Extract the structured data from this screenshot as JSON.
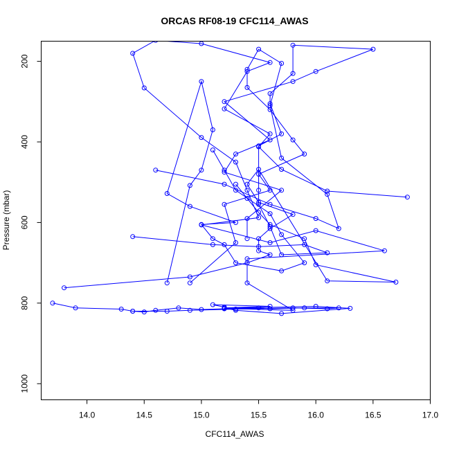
{
  "chart_data": {
    "type": "scatter",
    "title": "ORCAS RF08-19 CFC114_AWAS",
    "xlabel": "CFC114_AWAS",
    "ylabel": "Pressure (mbar)",
    "xlim": [
      13.6,
      17.0
    ],
    "ylim": [
      1040,
      150
    ],
    "y_inverted": true,
    "x_ticks": [
      14.0,
      14.5,
      15.0,
      15.5,
      16.0,
      16.5,
      17.0
    ],
    "x_tick_labels": [
      "14.0",
      "14.5",
      "15.0",
      "15.5",
      "16.0",
      "16.5",
      "17.0"
    ],
    "y_ticks": [
      200,
      400,
      600,
      800,
      1000
    ],
    "y_tick_labels": [
      "200",
      "400",
      "600",
      "800",
      "1000"
    ],
    "grid": false,
    "legend": "none",
    "marker": "open-circle",
    "connected": true,
    "color": "#0000ff",
    "series": [
      {
        "x": [
          16.8,
          16.1,
          15.7,
          15.5,
          15.6,
          15.2,
          15.4,
          15.6,
          15.0,
          14.6,
          14.4,
          14.5,
          15.0,
          15.3,
          15.4,
          15.5,
          15.0,
          15.6,
          16.0,
          16.6,
          15.4,
          15.4,
          15.8,
          15.2,
          16.0,
          16.3,
          15.7,
          15.3,
          15.2,
          15.6,
          15.1,
          15.2
        ],
        "y": [
          537,
          522,
          468,
          412,
          380,
          318,
          225,
          203,
          156,
          148,
          180,
          266,
          389,
          450,
          520,
          588,
          606,
          650,
          620,
          670,
          690,
          750,
          818,
          813,
          808,
          813,
          826,
          818,
          812,
          808,
          804,
          810
        ]
      },
      {
        "x": [
          14.4,
          15.1,
          15.5,
          15.9,
          16.1,
          15.7,
          15.6,
          15.5,
          15.5,
          15.5,
          15.7,
          15.6,
          15.6,
          15.8,
          15.8,
          16.5,
          16.0,
          15.8,
          15.2,
          15.6,
          15.3,
          15.2,
          15.7,
          15.4,
          15.4
        ],
        "y": [
          635,
          655,
          660,
          655,
          675,
          680,
          610,
          555,
          520,
          410,
          380,
          305,
          280,
          230,
          160,
          170,
          225,
          250,
          300,
          395,
          430,
          475,
          520,
          590,
          640
        ]
      },
      {
        "x": [
          14.6,
          15.2,
          15.6,
          16.0,
          16.2,
          16.1,
          15.7,
          15.6,
          15.7,
          15.5,
          15.4,
          15.4,
          15.6,
          15.8,
          15.9,
          15.5,
          15.6,
          15.2,
          15.3,
          14.9
        ],
        "y": [
          470,
          505,
          555,
          590,
          615,
          530,
          440,
          310,
          205,
          170,
          220,
          265,
          320,
          395,
          430,
          480,
          520,
          555,
          650,
          750
        ]
      },
      {
        "x": [
          13.8,
          14.9,
          15.4,
          15.6,
          15.5,
          15.5,
          15.6,
          15.8,
          15.5,
          15.4,
          15.5,
          16.1,
          16.7,
          16.0,
          15.9,
          15.6,
          15.5,
          15.4,
          15.3
        ],
        "y": [
          762,
          735,
          700,
          680,
          670,
          640,
          615,
          580,
          550,
          505,
          468,
          745,
          748,
          705,
          640,
          605,
          575,
          540,
          505
        ]
      },
      {
        "x": [
          13.7,
          13.9,
          14.3,
          14.4,
          14.5,
          14.6,
          14.8,
          15.0,
          15.2,
          15.5,
          15.6,
          15.9,
          16.2,
          16.1,
          15.8,
          15.3,
          14.9,
          14.7,
          14.4
        ],
        "y": [
          800,
          812,
          815,
          820,
          822,
          818,
          812,
          816,
          814,
          812,
          814,
          812,
          812,
          814,
          812,
          815,
          818,
          820,
          820
        ]
      },
      {
        "x": [
          14.7,
          14.9,
          15.0,
          15.1,
          15.0,
          14.7,
          14.9,
          15.3,
          15.0,
          15.1,
          15.2,
          15.3,
          15.7,
          15.9,
          15.7,
          15.6,
          15.3,
          15.2,
          15.1
        ],
        "y": [
          750,
          508,
          470,
          370,
          250,
          528,
          560,
          600,
          605,
          640,
          655,
          700,
          720,
          700,
          630,
          578,
          520,
          470,
          420
        ]
      }
    ]
  }
}
